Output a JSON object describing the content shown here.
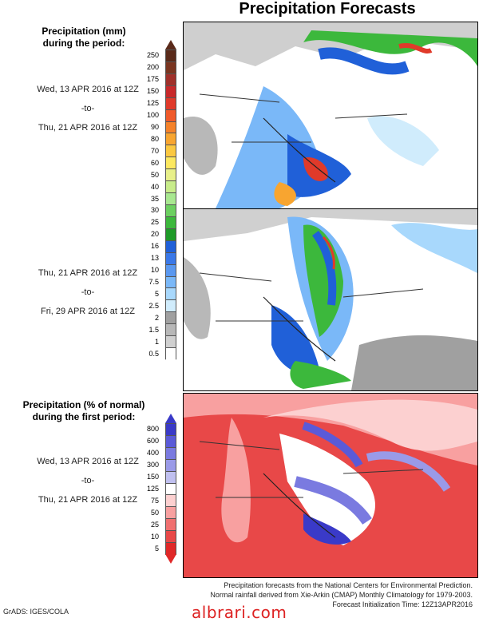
{
  "header": {
    "title": "Precipitation Forecasts"
  },
  "section1": {
    "heading_line1": "Precipitation (mm)",
    "heading_line2": "during the period:",
    "period1": {
      "start": "Wed, 13 APR 2016 at 12Z",
      "sep": "-to-",
      "end": "Thu, 21 APR 2016 at 12Z"
    },
    "period2": {
      "start": "Thu, 21 APR 2016 at 12Z",
      "sep": "-to-",
      "end": "Fri, 29 APR 2016 at 12Z"
    },
    "legend_labels": [
      "250",
      "200",
      "175",
      "150",
      "125",
      "100",
      "90",
      "80",
      "70",
      "60",
      "50",
      "40",
      "35",
      "30",
      "25",
      "20",
      "16",
      "13",
      "10",
      "7.5",
      "5",
      "2.5",
      "2",
      "1.5",
      "1",
      "0.5"
    ],
    "legend_colors": [
      "#5a2a1a",
      "#7a3520",
      "#a0302a",
      "#c8282a",
      "#e03a2a",
      "#f05a2a",
      "#f5822a",
      "#f8a530",
      "#fbc840",
      "#fce860",
      "#e8f08a",
      "#c8ec8a",
      "#a8e890",
      "#6cd060",
      "#3cb83c",
      "#1e9a28",
      "#2060d8",
      "#3a78e8",
      "#5a98f0",
      "#7ab8f8",
      "#a8d8fc",
      "#d0ecfc",
      "#a0a0a0",
      "#b8b8b8",
      "#d0d0d0",
      "#ffffff"
    ]
  },
  "section2": {
    "heading_line1": "Precipitation (% of normal)",
    "heading_line2": "during the first period:",
    "period": {
      "start": "Wed, 13 APR 2016 at 12Z",
      "sep": "-to-",
      "end": "Thu, 21 APR 2016 at 12Z"
    },
    "legend_labels": [
      "800",
      "600",
      "400",
      "300",
      "150",
      "125",
      "75",
      "50",
      "25",
      "10",
      "5"
    ],
    "legend_colors": [
      "#3a3ac8",
      "#5a5ad8",
      "#7a7ae0",
      "#9a9ae8",
      "#c0c0f0",
      "#ffffff",
      "#fcd0d0",
      "#f8a0a0",
      "#f07070",
      "#e84848",
      "#e02828"
    ]
  },
  "footer": {
    "line1": "Precipitation forecasts from the National Centers for Environmental Prediction.",
    "line2": "Normal rainfall derived from Xie-Arkin (CMAP) Monthly Climatology for 1979-2003.",
    "line3": "Forecast Initialization Time: 12Z13APR2016"
  },
  "credit": "GrADS: IGES/COLA",
  "watermark": "albrari.com"
}
